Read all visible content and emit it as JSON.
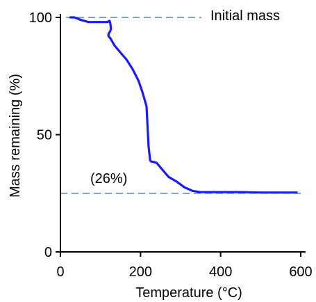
{
  "chart_data": {
    "type": "line",
    "title": "",
    "xlabel": "Temperature (°C)",
    "ylabel": "Mass remaining (%)",
    "xlim": [
      0,
      600
    ],
    "ylim": [
      0,
      100
    ],
    "xticks": [
      0,
      200,
      400,
      600
    ],
    "yticks": [
      0,
      50,
      100
    ],
    "xtick_labels": [
      "0",
      "200",
      "400",
      "600"
    ],
    "ytick_labels": [
      "0",
      "50",
      "100"
    ],
    "grid": false,
    "line_color": "#1a1aff",
    "ref_line_color": "#4f81bd",
    "series": [
      {
        "x": [
          25,
          35,
          50,
          70,
          90,
          110,
          118,
          121,
          123,
          125,
          126,
          124,
          120,
          120,
          125,
          135,
          150,
          165,
          180,
          195,
          205,
          210,
          215,
          220,
          224,
          227,
          230,
          240,
          255,
          270,
          290,
          310,
          330,
          350,
          400,
          450,
          500,
          550,
          590
        ],
        "y": [
          100,
          100,
          99,
          98,
          98,
          98,
          98,
          98.5,
          98.5,
          97,
          95,
          94,
          93,
          92,
          91,
          88,
          85,
          82,
          78,
          73,
          68,
          65,
          62,
          45,
          39,
          38.5,
          38.5,
          38,
          35,
          32,
          30,
          27.5,
          26,
          25.5,
          25.5,
          25.5,
          25.3,
          25.3,
          25.3
        ]
      }
    ],
    "reference_lines": [
      {
        "y": 100,
        "label": "Initial mass"
      },
      {
        "y": 25,
        "label": "(26%)"
      }
    ]
  }
}
